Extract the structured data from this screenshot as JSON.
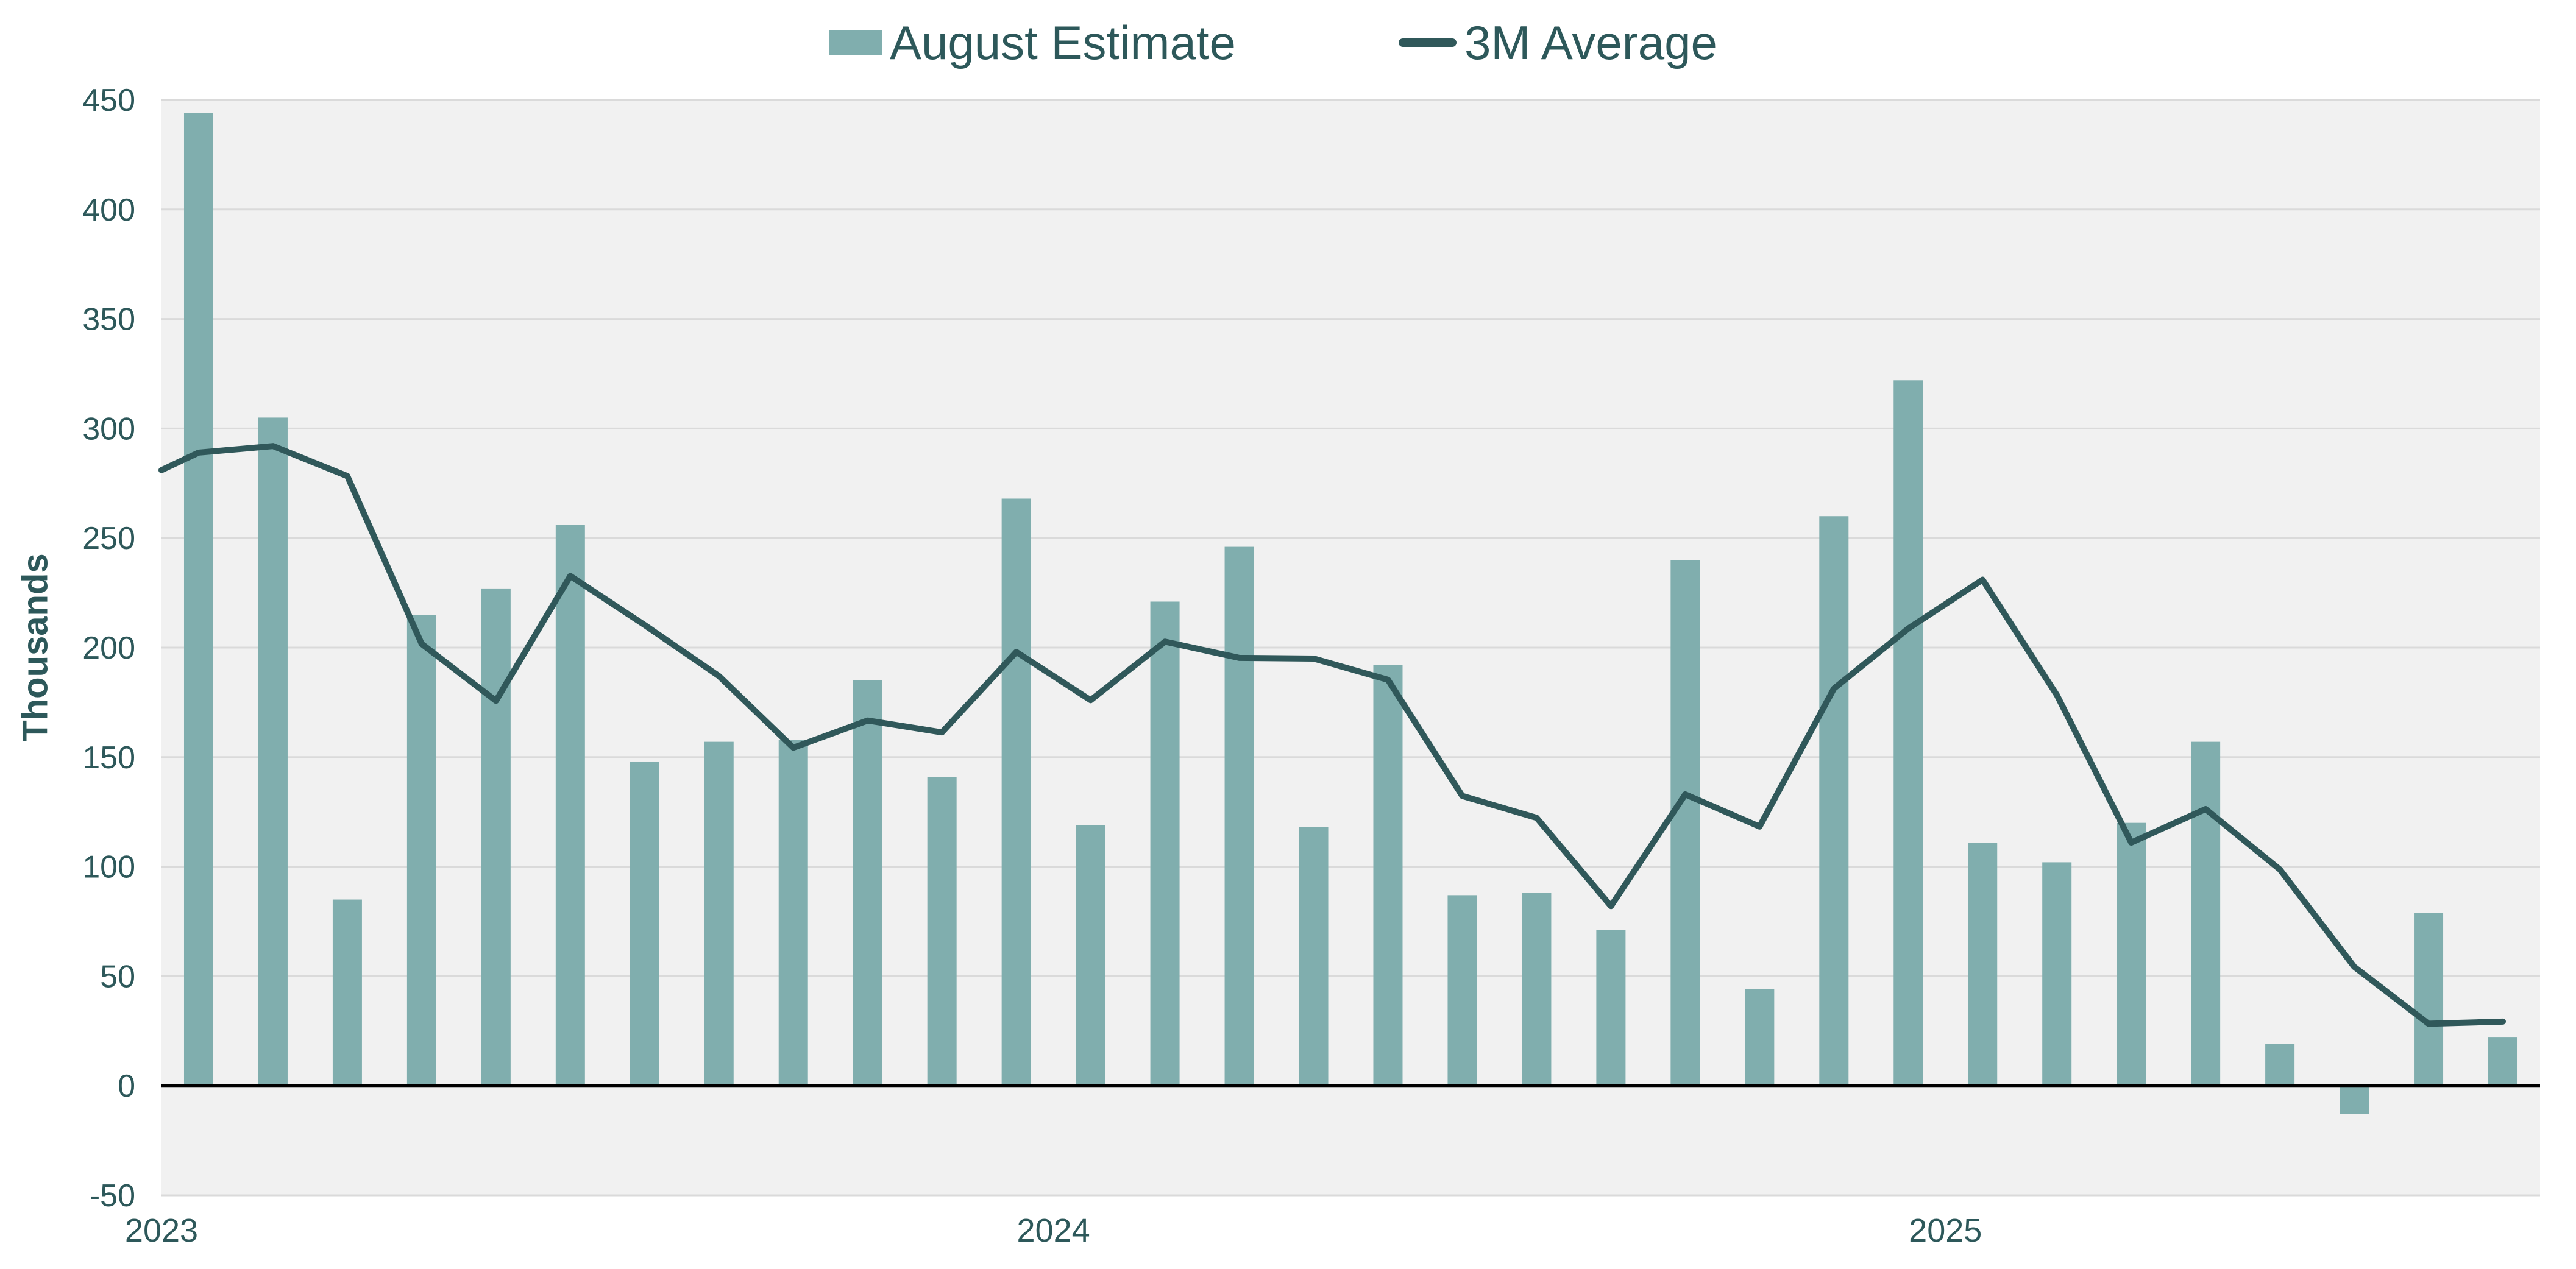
{
  "chart_data": {
    "type": "bar",
    "title": "",
    "months_shown": 32,
    "y_axis": {
      "label": "Thousands",
      "min": -50,
      "max": 450,
      "step": 50,
      "tick_labels": [
        "450",
        "400",
        "350",
        "300",
        "250",
        "200",
        "150",
        "100",
        "50",
        "0",
        "-50"
      ]
    },
    "x_axis": {
      "year_labels": [
        {
          "label": "2023",
          "month_index": 0
        },
        {
          "label": "2024",
          "month_index": 12
        },
        {
          "label": "2025",
          "month_index": 24
        }
      ]
    },
    "series": [
      {
        "name": "August Estimate",
        "type": "bar",
        "color": "#80AEAE",
        "values": [
          444,
          305,
          85,
          215,
          227,
          256,
          148,
          157,
          158,
          185,
          141,
          268,
          119,
          221,
          246,
          118,
          192,
          87,
          88,
          71,
          240,
          44,
          260,
          322,
          111,
          102,
          120,
          157,
          19,
          -13,
          79,
          22
        ]
      },
      {
        "name": "3M Average",
        "type": "line",
        "color": "#30585A",
        "edge_start": 281,
        "values": [
          289,
          292,
          278.3,
          201.7,
          175.7,
          232.7,
          210.3,
          187,
          154.3,
          166.7,
          161.3,
          198,
          176,
          202.7,
          195.3,
          195,
          185.3,
          132.3,
          122.3,
          82,
          133,
          118.3,
          181.3,
          208.7,
          231,
          178.3,
          111,
          126.3,
          98.7,
          54.3,
          28.3,
          29.3
        ]
      }
    ],
    "legend_position": "top",
    "grid": true
  },
  "colors": {
    "bar": "#80AEAE",
    "line": "#30585A",
    "text": "#2D585A",
    "plot_background": "#F1F1F1",
    "gridline": "#DADADA",
    "zero_line": "#000000",
    "page_background": "#FFFFFF"
  }
}
